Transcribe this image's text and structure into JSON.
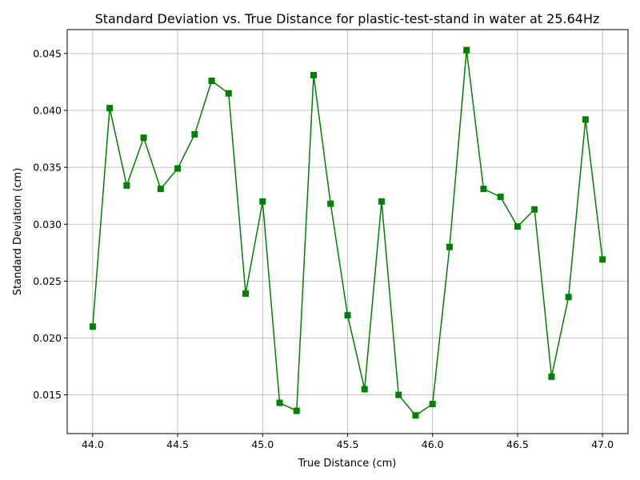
{
  "chart_data": {
    "type": "line",
    "title": "Standard Deviation vs. True Distance for plastic-test-stand in water at 25.64Hz",
    "xlabel": "True Distance (cm)",
    "ylabel": "Standard Deviation (cm)",
    "xlim": [
      43.85,
      47.15
    ],
    "ylim": [
      0.0116,
      0.0471
    ],
    "grid": true,
    "line_color": "#008000",
    "marker": "square",
    "xticks": [
      44.0,
      44.5,
      45.0,
      45.5,
      46.0,
      46.5,
      47.0
    ],
    "xtick_labels": [
      "44.0",
      "44.5",
      "45.0",
      "45.5",
      "46.0",
      "46.5",
      "47.0"
    ],
    "yticks": [
      0.015,
      0.02,
      0.025,
      0.03,
      0.035,
      0.04,
      0.045
    ],
    "ytick_labels": [
      "0.015",
      "0.020",
      "0.025",
      "0.030",
      "0.035",
      "0.040",
      "0.045"
    ],
    "series": [
      {
        "x": [
          44.0,
          44.1,
          44.2,
          44.3,
          44.4,
          44.5,
          44.6,
          44.7,
          44.8,
          44.9,
          45.0,
          45.1,
          45.2,
          45.3,
          45.4,
          45.5,
          45.6,
          45.7,
          45.8,
          45.9,
          46.0,
          46.1,
          46.2,
          46.3,
          46.4,
          46.5,
          46.6,
          46.7,
          46.8,
          46.9,
          47.0
        ],
        "y": [
          0.021,
          0.0402,
          0.0334,
          0.0376,
          0.0331,
          0.0349,
          0.0379,
          0.0426,
          0.0415,
          0.0239,
          0.032,
          0.0143,
          0.0136,
          0.0431,
          0.0318,
          0.022,
          0.0155,
          0.032,
          0.015,
          0.0132,
          0.0142,
          0.028,
          0.0453,
          0.0331,
          0.0324,
          0.0298,
          0.0313,
          0.0166,
          0.0236,
          0.0392,
          0.0269
        ]
      }
    ]
  }
}
